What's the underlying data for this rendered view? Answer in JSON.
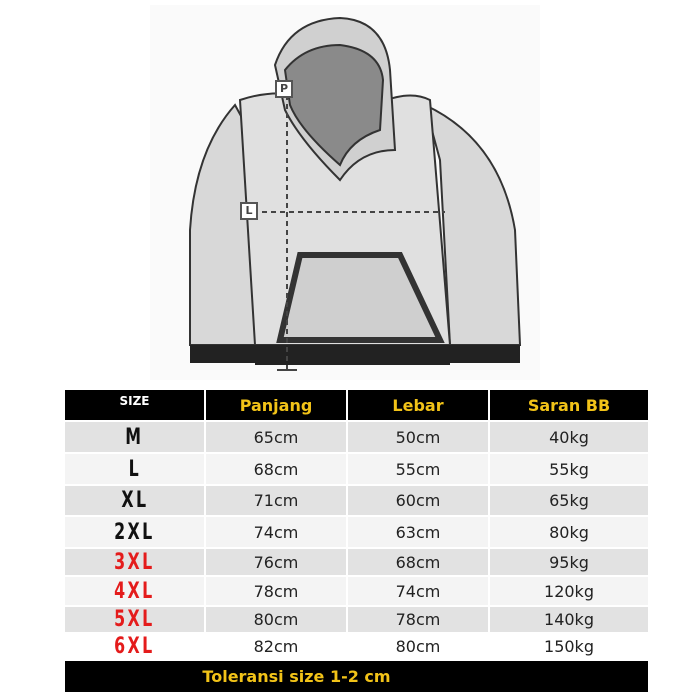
{
  "illustration": {
    "labels": {
      "length_marker": "P",
      "width_marker": "L"
    }
  },
  "table": {
    "headers": [
      "SIZE",
      "Panjang",
      "Lebar",
      "Saran BB"
    ],
    "rows": [
      {
        "size": "M",
        "panjang": "65cm",
        "lebar": "50cm",
        "saran_bb": "40kg",
        "size_color": "#111111"
      },
      {
        "size": "L",
        "panjang": "68cm",
        "lebar": "55cm",
        "saran_bb": "55kg",
        "size_color": "#111111"
      },
      {
        "size": "XL",
        "panjang": "71cm",
        "lebar": "60cm",
        "saran_bb": "65kg",
        "size_color": "#111111"
      },
      {
        "size": "2XL",
        "panjang": "74cm",
        "lebar": "63cm",
        "saran_bb": "80kg",
        "size_color": "#111111"
      },
      {
        "size": "3XL",
        "panjang": "76cm",
        "lebar": "68cm",
        "saran_bb": "95kg",
        "size_color": "#e41b1b"
      },
      {
        "size": "4XL",
        "panjang": "78cm",
        "lebar": "74cm",
        "saran_bb": "120kg",
        "size_color": "#e41b1b"
      },
      {
        "size": "5XL",
        "panjang": "80cm",
        "lebar": "78cm",
        "saran_bb": "140kg",
        "size_color": "#e41b1b"
      },
      {
        "size": "6XL",
        "panjang": "82cm",
        "lebar": "80cm",
        "saran_bb": "150kg",
        "size_color": "#e41b1b"
      }
    ],
    "footer": "Toleransi size 1-2 cm"
  },
  "colors": {
    "header_bg": "#000000",
    "header_text": "#f2c318",
    "highlight_size": "#e41b1b"
  }
}
